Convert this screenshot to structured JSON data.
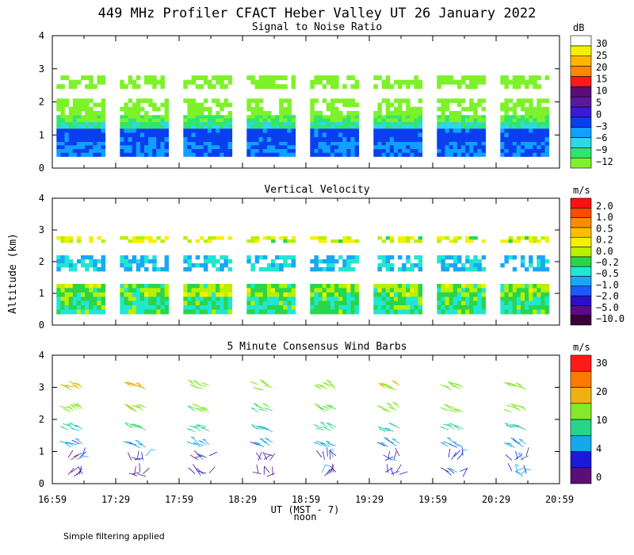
{
  "title": "449 MHz Profiler CFACT Heber Valley UT 26 January 2022",
  "y_axis_label": "Altitude (km)",
  "x_axis_label": "UT  (MST - 7)",
  "x_axis_sublabel": "noon",
  "footer_note": "Simple filtering applied",
  "x_ticks": [
    "16:59",
    "17:29",
    "17:59",
    "18:29",
    "18:59",
    "19:29",
    "19:59",
    "20:29",
    "20:59"
  ],
  "colors": {
    "snr": [
      "#7df22a",
      "#2ee66e",
      "#2ed7ea",
      "#10a0ff",
      "#0a3ff0",
      "#3a1ad4",
      "#5a18a0",
      "#5a0e78",
      "#ff1a1a",
      "#ff8800",
      "#ffb400",
      "#f5f000",
      "#ffffff"
    ],
    "velocity": [
      "#3a003a",
      "#5a0a8a",
      "#2a10c8",
      "#1a5cff",
      "#18a8f5",
      "#20e6d2",
      "#2ad54a",
      "#b8f000",
      "#f5f000",
      "#ffbe00",
      "#ff8c00",
      "#ff4a00",
      "#ff1010"
    ],
    "wind": [
      "#5a0e78",
      "#1a1ad8",
      "#15a8ec",
      "#25d68a",
      "#86e82a",
      "#f0b010",
      "#ff7a00",
      "#ff1a1a"
    ]
  },
  "chart_data": [
    {
      "type": "heatmap",
      "title": "Signal to Noise Ratio",
      "unit": "dB",
      "x_range": [
        "16:59",
        "20:59"
      ],
      "ylim": [
        0,
        4
      ],
      "y_ticks": [
        "0",
        "1",
        "2",
        "3",
        "4"
      ],
      "colorbar_labels": [
        "30",
        "25",
        "20",
        "15",
        "10",
        "5",
        "0",
        "−3",
        "−6",
        "−9",
        "−12"
      ],
      "segments": [
        {
          "start": "17:01",
          "end": "17:24"
        },
        {
          "start": "17:31",
          "end": "17:54"
        },
        {
          "start": "18:01",
          "end": "18:24"
        },
        {
          "start": "18:31",
          "end": "18:54"
        },
        {
          "start": "19:01",
          "end": "19:24"
        },
        {
          "start": "19:31",
          "end": "19:54"
        },
        {
          "start": "20:01",
          "end": "20:24"
        },
        {
          "start": "20:31",
          "end": "20:54"
        }
      ],
      "layers": [
        {
          "y0": 0.35,
          "y1": 0.8,
          "value": 0
        },
        {
          "y0": 0.8,
          "y1": 1.2,
          "value": 2
        },
        {
          "y0": 1.2,
          "y1": 1.4,
          "value": -6
        },
        {
          "y0": 1.4,
          "y1": 1.6,
          "value": -9
        },
        {
          "y0": 1.6,
          "y1": 2.1,
          "value": -12
        },
        {
          "y0": 2.4,
          "y1": 2.8,
          "value": -12
        }
      ]
    },
    {
      "type": "heatmap",
      "title": "Vertical Velocity",
      "unit": "m/s",
      "x_range": [
        "16:59",
        "20:59"
      ],
      "ylim": [
        0,
        4
      ],
      "y_ticks": [
        "0",
        "1",
        "2",
        "3",
        "4"
      ],
      "colorbar_labels": [
        "2.0",
        "1.0",
        "0.5",
        "0.2",
        "0.0",
        "−0.2",
        "−0.5",
        "−1.0",
        "−2.0",
        "−5.0",
        "−10.0"
      ],
      "segments": [
        {
          "start": "17:01",
          "end": "17:24"
        },
        {
          "start": "17:31",
          "end": "17:54"
        },
        {
          "start": "18:01",
          "end": "18:24"
        },
        {
          "start": "18:31",
          "end": "18:54"
        },
        {
          "start": "19:01",
          "end": "19:24"
        },
        {
          "start": "19:31",
          "end": "19:54"
        },
        {
          "start": "20:01",
          "end": "20:24"
        },
        {
          "start": "20:31",
          "end": "20:54"
        }
      ],
      "layers": [
        {
          "y0": 0.35,
          "y1": 0.9,
          "value": -0.2
        },
        {
          "y0": 0.9,
          "y1": 1.3,
          "value": 0.0
        },
        {
          "y0": 1.7,
          "y1": 2.2,
          "value": -0.5
        },
        {
          "y0": 2.6,
          "y1": 2.8,
          "value": 0.2
        }
      ]
    },
    {
      "type": "scatter",
      "title": "5 Minute Consensus Wind Barbs",
      "unit": "m/s",
      "x_range": [
        "16:59",
        "20:59"
      ],
      "ylim": [
        0,
        4
      ],
      "y_ticks": [
        "0",
        "1",
        "2",
        "3",
        "4"
      ],
      "colorbar_labels": [
        "30",
        "20",
        "10",
        "4",
        "0"
      ],
      "speed_bins": [
        0,
        2,
        4,
        7,
        10,
        15,
        20,
        30
      ],
      "profiles": [
        {
          "time": "17:05",
          "levels": [
            {
              "alt": 0.3,
              "speed": 2
            },
            {
              "alt": 0.8,
              "speed": 3
            },
            {
              "alt": 1.2,
              "speed": 5
            },
            {
              "alt": 1.7,
              "speed": 8
            },
            {
              "alt": 2.3,
              "speed": 12
            },
            {
              "alt": 3.0,
              "speed": 16
            }
          ]
        },
        {
          "time": "17:35",
          "levels": [
            {
              "alt": 0.3,
              "speed": 2
            },
            {
              "alt": 0.8,
              "speed": 3
            },
            {
              "alt": 1.2,
              "speed": 5
            },
            {
              "alt": 1.7,
              "speed": 9
            },
            {
              "alt": 2.3,
              "speed": 14
            },
            {
              "alt": 3.0,
              "speed": 17
            }
          ]
        },
        {
          "time": "18:05",
          "levels": [
            {
              "alt": 0.3,
              "speed": 2
            },
            {
              "alt": 0.8,
              "speed": 3
            },
            {
              "alt": 1.2,
              "speed": 6
            },
            {
              "alt": 1.7,
              "speed": 8
            },
            {
              "alt": 2.3,
              "speed": 11
            },
            {
              "alt": 3.0,
              "speed": 12
            }
          ]
        },
        {
          "time": "18:35",
          "levels": [
            {
              "alt": 0.3,
              "speed": 2
            },
            {
              "alt": 0.8,
              "speed": 3
            },
            {
              "alt": 1.2,
              "speed": 5
            },
            {
              "alt": 1.7,
              "speed": 7
            },
            {
              "alt": 2.3,
              "speed": 10
            },
            {
              "alt": 3.0,
              "speed": 12
            }
          ]
        },
        {
          "time": "19:05",
          "levels": [
            {
              "alt": 0.3,
              "speed": 3
            },
            {
              "alt": 0.8,
              "speed": 3
            },
            {
              "alt": 1.2,
              "speed": 5
            },
            {
              "alt": 1.7,
              "speed": 8
            },
            {
              "alt": 2.3,
              "speed": 11
            },
            {
              "alt": 3.0,
              "speed": 12
            }
          ]
        },
        {
          "time": "19:35",
          "levels": [
            {
              "alt": 0.3,
              "speed": 3
            },
            {
              "alt": 0.8,
              "speed": 3
            },
            {
              "alt": 1.2,
              "speed": 5
            },
            {
              "alt": 1.7,
              "speed": 8
            },
            {
              "alt": 2.3,
              "speed": 12
            },
            {
              "alt": 3.0,
              "speed": 16
            }
          ]
        },
        {
          "time": "20:05",
          "levels": [
            {
              "alt": 0.3,
              "speed": 3
            },
            {
              "alt": 0.8,
              "speed": 3
            },
            {
              "alt": 1.2,
              "speed": 5
            },
            {
              "alt": 1.7,
              "speed": 8
            },
            {
              "alt": 2.3,
              "speed": 11
            },
            {
              "alt": 3.0,
              "speed": 12
            }
          ]
        },
        {
          "time": "20:35",
          "levels": [
            {
              "alt": 0.3,
              "speed": 3
            },
            {
              "alt": 0.8,
              "speed": 3
            },
            {
              "alt": 1.2,
              "speed": 5
            },
            {
              "alt": 1.7,
              "speed": 8
            },
            {
              "alt": 2.3,
              "speed": 12
            },
            {
              "alt": 3.0,
              "speed": 14
            }
          ]
        }
      ]
    }
  ]
}
